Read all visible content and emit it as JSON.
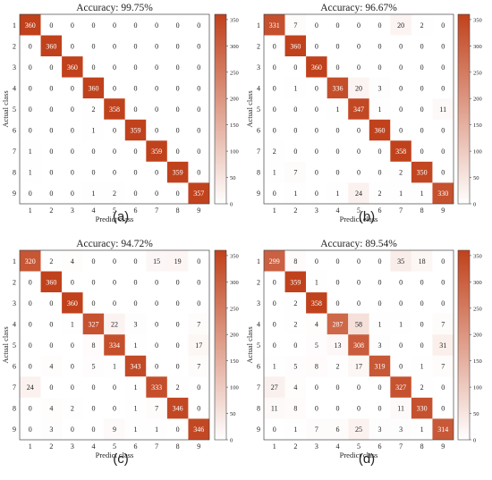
{
  "colors": {
    "low": "#ffffff",
    "high": "#c0411b",
    "text_dark": "#222222",
    "text_light": "#ffffff",
    "axis": "#444444"
  },
  "colorbar_ticks": [
    0,
    50,
    100,
    150,
    200,
    250,
    300,
    350
  ],
  "chart_data": [
    {
      "type": "heatmap",
      "title": "Accuracy: 99.75%",
      "caption": "(a)",
      "xlabel": "Predict class",
      "ylabel": "Actual class",
      "x": [
        "1",
        "2",
        "3",
        "4",
        "5",
        "6",
        "7",
        "8",
        "9"
      ],
      "y": [
        "1",
        "2",
        "3",
        "4",
        "5",
        "6",
        "7",
        "8",
        "9"
      ],
      "zlim": [
        0,
        360
      ],
      "values": [
        [
          360,
          0,
          0,
          0,
          0,
          0,
          0,
          0,
          0
        ],
        [
          0,
          360,
          0,
          0,
          0,
          0,
          0,
          0,
          0
        ],
        [
          0,
          0,
          360,
          0,
          0,
          0,
          0,
          0,
          0
        ],
        [
          0,
          0,
          0,
          360,
          0,
          0,
          0,
          0,
          0
        ],
        [
          0,
          0,
          0,
          2,
          358,
          0,
          0,
          0,
          0
        ],
        [
          0,
          0,
          0,
          1,
          0,
          359,
          0,
          0,
          0
        ],
        [
          1,
          0,
          0,
          0,
          0,
          0,
          359,
          0,
          0
        ],
        [
          1,
          0,
          0,
          0,
          0,
          0,
          0,
          359,
          0
        ],
        [
          0,
          0,
          0,
          1,
          2,
          0,
          0,
          0,
          357
        ]
      ]
    },
    {
      "type": "heatmap",
      "title": "Accuracy: 96.67%",
      "caption": "(b)",
      "xlabel": "Predict class",
      "ylabel": "Actual class",
      "x": [
        "1",
        "2",
        "3",
        "4",
        "5",
        "6",
        "7",
        "8",
        "9"
      ],
      "y": [
        "1",
        "2",
        "3",
        "4",
        "5",
        "6",
        "7",
        "8",
        "9"
      ],
      "zlim": [
        0,
        360
      ],
      "values": [
        [
          331,
          7,
          0,
          0,
          0,
          0,
          20,
          2,
          0
        ],
        [
          0,
          360,
          0,
          0,
          0,
          0,
          0,
          0,
          0
        ],
        [
          0,
          0,
          360,
          0,
          0,
          0,
          0,
          0,
          0
        ],
        [
          0,
          1,
          0,
          336,
          20,
          3,
          0,
          0,
          0
        ],
        [
          0,
          0,
          0,
          1,
          347,
          1,
          0,
          0,
          11
        ],
        [
          0,
          0,
          0,
          0,
          0,
          360,
          0,
          0,
          0
        ],
        [
          2,
          0,
          0,
          0,
          0,
          0,
          358,
          0,
          0
        ],
        [
          1,
          7,
          0,
          0,
          0,
          0,
          2,
          350,
          0
        ],
        [
          0,
          1,
          0,
          1,
          24,
          2,
          1,
          1,
          330
        ]
      ]
    },
    {
      "type": "heatmap",
      "title": "Accuracy: 94.72%",
      "caption": "(c)",
      "xlabel": "Predict class",
      "ylabel": "Actual class",
      "x": [
        "1",
        "2",
        "3",
        "4",
        "5",
        "6",
        "7",
        "8",
        "9"
      ],
      "y": [
        "1",
        "2",
        "3",
        "4",
        "5",
        "6",
        "7",
        "8",
        "9"
      ],
      "zlim": [
        0,
        360
      ],
      "values": [
        [
          320,
          2,
          4,
          0,
          0,
          0,
          15,
          19,
          0
        ],
        [
          0,
          360,
          0,
          0,
          0,
          0,
          0,
          0,
          0
        ],
        [
          0,
          0,
          360,
          0,
          0,
          0,
          0,
          0,
          0
        ],
        [
          0,
          0,
          1,
          327,
          22,
          3,
          0,
          0,
          7
        ],
        [
          0,
          0,
          0,
          8,
          334,
          1,
          0,
          0,
          17
        ],
        [
          0,
          4,
          0,
          5,
          1,
          343,
          0,
          0,
          7
        ],
        [
          24,
          0,
          0,
          0,
          0,
          1,
          333,
          2,
          0
        ],
        [
          0,
          4,
          2,
          0,
          0,
          1,
          7,
          346,
          0
        ],
        [
          0,
          3,
          0,
          0,
          9,
          1,
          1,
          0,
          346
        ]
      ]
    },
    {
      "type": "heatmap",
      "title": "Accuracy: 89.54%",
      "caption": "(d)",
      "xlabel": "Predict class",
      "ylabel": "Actual class",
      "x": [
        "1",
        "2",
        "3",
        "4",
        "5",
        "6",
        "7",
        "8",
        "9"
      ],
      "y": [
        "1",
        "2",
        "3",
        "4",
        "5",
        "6",
        "7",
        "8",
        "9"
      ],
      "zlim": [
        0,
        360
      ],
      "values": [
        [
          299,
          8,
          0,
          0,
          0,
          0,
          35,
          18,
          0
        ],
        [
          0,
          359,
          1,
          0,
          0,
          0,
          0,
          0,
          0
        ],
        [
          0,
          2,
          358,
          0,
          0,
          0,
          0,
          0,
          0
        ],
        [
          0,
          2,
          4,
          287,
          58,
          1,
          1,
          0,
          7
        ],
        [
          0,
          0,
          5,
          13,
          308,
          3,
          0,
          0,
          31
        ],
        [
          1,
          5,
          8,
          2,
          17,
          319,
          0,
          1,
          7
        ],
        [
          27,
          4,
          0,
          0,
          0,
          0,
          327,
          2,
          0
        ],
        [
          11,
          8,
          0,
          0,
          0,
          0,
          11,
          330,
          0
        ],
        [
          0,
          1,
          7,
          6,
          25,
          3,
          3,
          1,
          314
        ]
      ]
    }
  ]
}
